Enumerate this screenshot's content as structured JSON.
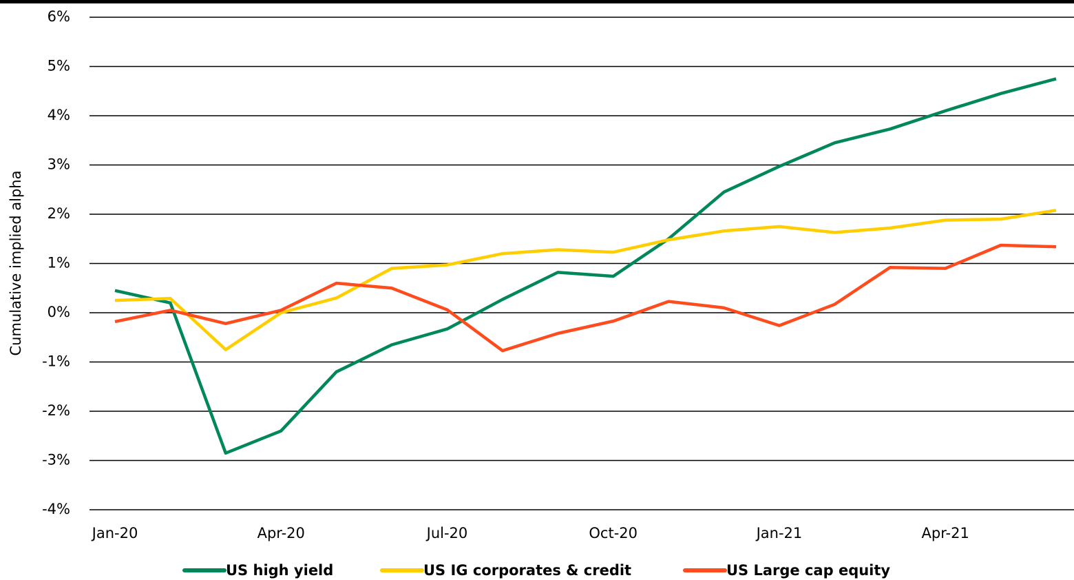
{
  "chart_data": {
    "type": "line",
    "y_label": "Cumulative implied alpha",
    "categories": [
      "Jan-20",
      null,
      null,
      "Apr-20",
      null,
      null,
      "Jul-20",
      null,
      null,
      "Oct-20",
      null,
      null,
      "Jan-21",
      null,
      null,
      "Apr-21",
      null,
      null
    ],
    "series": [
      {
        "name": "US high yield",
        "color": "#00875a",
        "values": [
          0.45,
          0.2,
          -2.85,
          -2.4,
          -1.2,
          -0.65,
          -0.33,
          0.27,
          0.82,
          0.74,
          1.5,
          2.45,
          2.97,
          3.45,
          3.73,
          4.1,
          4.45,
          4.75
        ]
      },
      {
        "name": "US IG corporates & credit",
        "color": "#ffce00",
        "values": [
          0.25,
          0.29,
          -0.75,
          0.0,
          0.3,
          0.9,
          0.97,
          1.2,
          1.28,
          1.23,
          1.48,
          1.66,
          1.75,
          1.63,
          1.72,
          1.88,
          1.9,
          2.08
        ]
      },
      {
        "name": "US Large cap equity",
        "color": "#ff4c1f",
        "values": [
          -0.18,
          0.05,
          -0.22,
          0.05,
          0.6,
          0.5,
          0.06,
          -0.77,
          -0.42,
          -0.17,
          0.23,
          0.1,
          -0.26,
          0.17,
          0.92,
          0.9,
          1.37,
          1.34
        ]
      }
    ],
    "ylim": [
      -4,
      6
    ],
    "yticks": [
      {
        "value": -4,
        "label": "-4%"
      },
      {
        "value": -3,
        "label": "-3%"
      },
      {
        "value": -2,
        "label": "-2%"
      },
      {
        "value": -1,
        "label": "-1%"
      },
      {
        "value": 0,
        "label": "0%"
      },
      {
        "value": 1,
        "label": "1%"
      },
      {
        "value": 2,
        "label": "2%"
      },
      {
        "value": 3,
        "label": "3%"
      },
      {
        "value": 4,
        "label": "4%"
      },
      {
        "value": 5,
        "label": "5%"
      },
      {
        "value": 6,
        "label": "6%"
      }
    ],
    "grid": true,
    "legend": "bottom"
  }
}
